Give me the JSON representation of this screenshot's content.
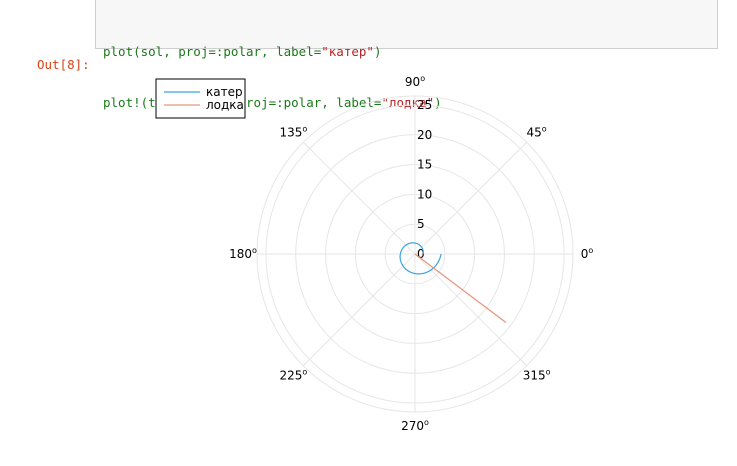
{
  "code_cell": {
    "line1": {
      "pre": "plot(sol, proj=:polar, label=",
      "str": "\"катер\"",
      "post": ")"
    },
    "line2": {
      "pre": "plot!(tetha1, r1, proj=:polar, label=",
      "str": "\"лодка\"",
      "post": ")"
    }
  },
  "output": {
    "prompt": "Out[8]:"
  },
  "colors": {
    "series1": "#3aa3e0",
    "series2": "#e8937c",
    "grid": "#e6e6e6"
  },
  "chart_data": {
    "type": "line",
    "projection": "polar",
    "title": "",
    "legend_position": "top-left",
    "r_ticks": [
      "0",
      "5",
      "10",
      "15",
      "20",
      "25"
    ],
    "r_values": [
      0,
      5,
      10,
      15,
      20,
      25
    ],
    "rlim": [
      0,
      26.5
    ],
    "angle_ticks": [
      {
        "deg": 0,
        "label": "0"
      },
      {
        "deg": 45,
        "label": "45"
      },
      {
        "deg": 90,
        "label": "90"
      },
      {
        "deg": 135,
        "label": "135"
      },
      {
        "deg": 180,
        "label": "180"
      },
      {
        "deg": 225,
        "label": "225"
      },
      {
        "deg": 270,
        "label": "270"
      },
      {
        "deg": 315,
        "label": "315"
      }
    ],
    "angle_unit_mark": "o",
    "series": [
      {
        "name": "катер",
        "kind": "spiral",
        "r0": 1.38,
        "growth_per_rad": 0.1836,
        "theta_start_deg": 0,
        "theta_end_deg": 360
      },
      {
        "name": "лодка",
        "kind": "ray",
        "theta_deg": 323,
        "r_start": 0,
        "r_end": 19.1
      }
    ]
  }
}
